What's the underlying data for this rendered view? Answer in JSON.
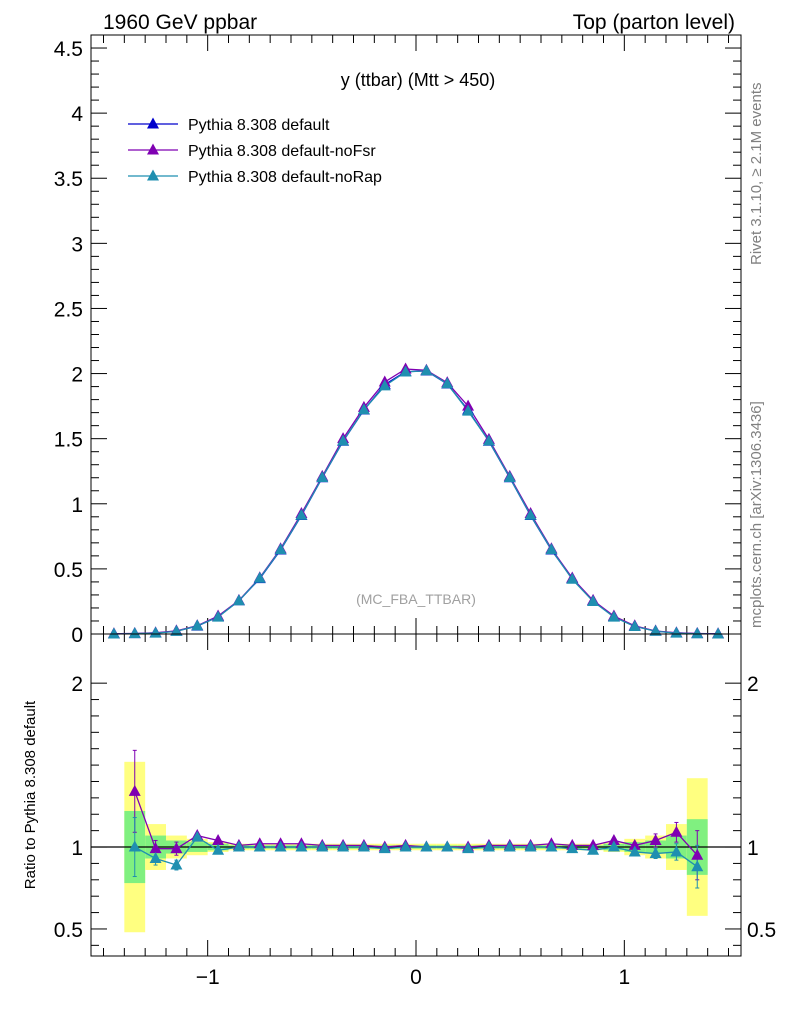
{
  "header": {
    "left": "1960 GeV ppbar",
    "right": "Top (parton level)"
  },
  "side_labels": {
    "rivet": "Rivet 3.1.10, ≥ 2.1M events",
    "mcplots": "mcplots.cern.ch [arXiv:1306.3436]"
  },
  "watermark": "(MC_FBA_TTBAR)",
  "colors": {
    "default": "#0000cc",
    "noFsr": "#7f00b2",
    "noRap": "#1f8fb0",
    "band_outer": "#ffff80",
    "band_inner": "#80f080"
  },
  "chart_data": [
    {
      "type": "line",
      "title": "y (ttbar) (Mtt > 450)",
      "xlim": [
        -1.56,
        1.56
      ],
      "ylim": [
        0,
        4.6
      ],
      "yticks": [
        0,
        0.5,
        1,
        1.5,
        2,
        2.5,
        3,
        3.5,
        4,
        4.5
      ],
      "ytick_labels": [
        "0",
        "0.5",
        "1",
        "1.5",
        "2",
        "2.5",
        "3",
        "3.5",
        "4",
        "4.5"
      ],
      "legend_position": "top-left",
      "x": [
        -1.45,
        -1.35,
        -1.25,
        -1.15,
        -1.05,
        -0.95,
        -0.85,
        -0.75,
        -0.65,
        -0.55,
        -0.45,
        -0.35,
        -0.25,
        -0.15,
        -0.05,
        0.05,
        0.15,
        0.25,
        0.35,
        0.45,
        0.55,
        0.65,
        0.75,
        0.85,
        0.95,
        1.05,
        1.15,
        1.25,
        1.35,
        1.45
      ],
      "series": [
        {
          "name": "Pythia 8.308 default",
          "color_key": "default",
          "values": [
            0.0,
            0.003,
            0.008,
            0.022,
            0.06,
            0.132,
            0.255,
            0.425,
            0.645,
            0.91,
            1.2,
            1.48,
            1.72,
            1.915,
            2.015,
            2.02,
            1.92,
            1.72,
            1.48,
            1.2,
            0.91,
            0.645,
            0.425,
            0.255,
            0.132,
            0.06,
            0.022,
            0.008,
            0.003,
            0.0
          ]
        },
        {
          "name": "Pythia 8.308 default-noFsr",
          "color_key": "noFsr",
          "values": [
            0.002,
            0.004,
            0.009,
            0.024,
            0.064,
            0.138,
            0.258,
            0.432,
            0.655,
            0.925,
            1.21,
            1.5,
            1.74,
            1.935,
            2.035,
            2.025,
            1.93,
            1.75,
            1.495,
            1.21,
            0.925,
            0.655,
            0.43,
            0.258,
            0.138,
            0.063,
            0.023,
            0.009,
            0.004,
            0.002
          ]
        },
        {
          "name": "Pythia 8.308 default-noRap",
          "color_key": "noRap",
          "values": [
            0.0,
            0.003,
            0.007,
            0.02,
            0.062,
            0.13,
            0.255,
            0.428,
            0.648,
            0.912,
            1.202,
            1.482,
            1.722,
            1.905,
            2.012,
            2.022,
            1.922,
            1.712,
            1.482,
            1.202,
            0.912,
            0.648,
            0.42,
            0.25,
            0.13,
            0.058,
            0.021,
            0.007,
            0.002,
            0.0
          ]
        }
      ]
    },
    {
      "type": "line",
      "ylabel": "Ratio to Pythia 8.308 default",
      "xlim": [
        -1.56,
        1.56
      ],
      "ylim": [
        0.335,
        2.3
      ],
      "yticks": [
        0.5,
        1,
        2
      ],
      "ytick_labels": [
        "0.5",
        "1",
        "2"
      ],
      "xticks": [
        -1,
        0,
        1
      ],
      "xtick_labels": [
        "−1",
        "0",
        "1"
      ],
      "x": [
        -1.35,
        -1.25,
        -1.15,
        -1.05,
        -0.95,
        -0.85,
        -0.75,
        -0.65,
        -0.55,
        -0.45,
        -0.35,
        -0.25,
        -0.15,
        -0.05,
        0.05,
        0.15,
        0.25,
        0.35,
        0.45,
        0.55,
        0.65,
        0.75,
        0.85,
        0.95,
        1.05,
        1.15,
        1.25,
        1.35
      ],
      "band_inner": [
        0.22,
        0.07,
        0.04,
        0.03,
        0.02,
        0.01,
        0.01,
        0.01,
        0.01,
        0.01,
        0.01,
        0.01,
        0.01,
        0.01,
        0.01,
        0.01,
        0.01,
        0.01,
        0.01,
        0.01,
        0.01,
        0.01,
        0.01,
        0.02,
        0.03,
        0.04,
        0.07,
        0.17
      ],
      "band_outer": [
        0.52,
        0.14,
        0.07,
        0.05,
        0.03,
        0.02,
        0.02,
        0.02,
        0.02,
        0.02,
        0.02,
        0.02,
        0.02,
        0.02,
        0.02,
        0.02,
        0.02,
        0.02,
        0.02,
        0.02,
        0.02,
        0.02,
        0.02,
        0.03,
        0.05,
        0.07,
        0.14,
        0.42
      ],
      "series": [
        {
          "name": "Pythia 8.308 default-noFsr",
          "color_key": "noFsr",
          "values": [
            1.34,
            0.99,
            0.99,
            1.07,
            1.04,
            1.01,
            1.02,
            1.02,
            1.02,
            1.01,
            1.01,
            1.01,
            1.0,
            1.01,
            1.0,
            1.0,
            1.0,
            1.01,
            1.01,
            1.01,
            1.02,
            1.01,
            1.01,
            1.04,
            1.01,
            1.04,
            1.09,
            0.95
          ],
          "errors": [
            0.25,
            0.05,
            0.04,
            0.02,
            0.01,
            0.01,
            0.01,
            0.01,
            0.01,
            0.01,
            0.01,
            0.01,
            0.01,
            0.01,
            0.01,
            0.01,
            0.01,
            0.01,
            0.01,
            0.01,
            0.01,
            0.01,
            0.01,
            0.01,
            0.01,
            0.04,
            0.06,
            0.15
          ]
        },
        {
          "name": "Pythia 8.308 default-noRap",
          "color_key": "noRap",
          "values": [
            1.0,
            0.93,
            0.89,
            1.06,
            0.98,
            1.0,
            1.0,
            1.0,
            1.0,
            1.0,
            1.0,
            1.0,
            0.99,
            1.0,
            1.0,
            1.0,
            0.99,
            1.0,
            1.0,
            1.0,
            1.0,
            0.99,
            0.98,
            1.0,
            0.97,
            0.96,
            0.97,
            0.88
          ],
          "errors": [
            0.18,
            0.04,
            0.03,
            0.01,
            0.01,
            0.01,
            0.01,
            0.01,
            0.01,
            0.01,
            0.01,
            0.01,
            0.01,
            0.01,
            0.01,
            0.01,
            0.01,
            0.01,
            0.01,
            0.01,
            0.01,
            0.01,
            0.01,
            0.01,
            0.01,
            0.03,
            0.05,
            0.13
          ]
        }
      ]
    }
  ]
}
